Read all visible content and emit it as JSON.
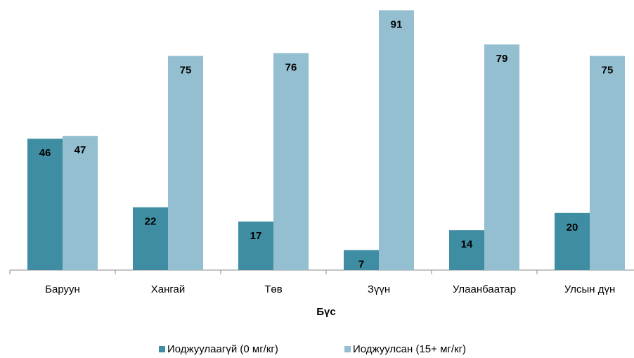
{
  "chart_data": {
    "type": "bar",
    "x_label": "Бүс",
    "categories": [
      "Баруун",
      "Хангай",
      "Төв",
      "Зүүн",
      "Улаанбаатар",
      "Улсын дүн"
    ],
    "series": [
      {
        "name": "Иоджуулаагүй (0 мг/кг)",
        "color": "#3f8da2",
        "values": [
          46,
          22,
          17,
          7,
          14,
          20
        ]
      },
      {
        "name": "Иоджуулсан (15+ мг/кг)",
        "color": "#93bfd0",
        "values": [
          47,
          75,
          76,
          91,
          79,
          75
        ]
      }
    ],
    "ylim": [
      0,
      100
    ],
    "legend": "bottom"
  }
}
